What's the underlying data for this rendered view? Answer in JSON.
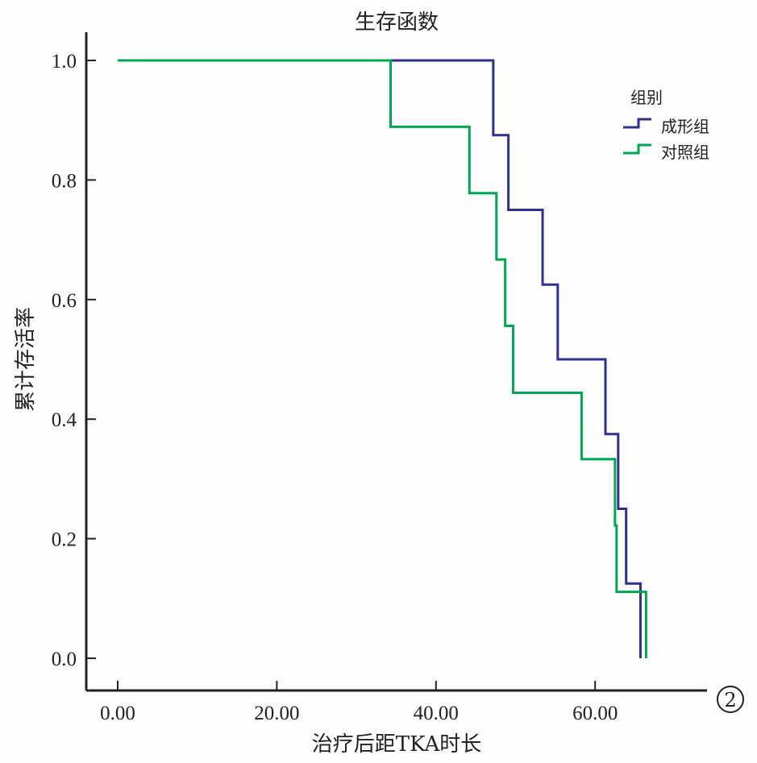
{
  "chart_data": {
    "type": "line",
    "subtype": "kaplan-meier-step",
    "title": "生存函数",
    "xlabel": "治疗后距TKA时长",
    "ylabel": "累计存活率",
    "xlim": [
      -4,
      74
    ],
    "ylim": [
      0,
      1.05
    ],
    "xticks": [
      0,
      20,
      40,
      60
    ],
    "xtick_labels": [
      "0.00",
      "20.00",
      "40.00",
      "60.00"
    ],
    "yticks": [
      0,
      0.2,
      0.4,
      0.6,
      0.8,
      1.0
    ],
    "ytick_labels": [
      "0.0",
      "0.2",
      "0.4",
      "0.6",
      "0.8",
      "1.0"
    ],
    "grid": false,
    "legend": {
      "title": "组别",
      "placement": "top-right"
    },
    "panel_label": "②",
    "series": [
      {
        "name": "成形组",
        "color": "#2e3192",
        "start": [
          0,
          1.0
        ],
        "steps": [
          [
            47.2,
            0.875
          ],
          [
            49.1,
            0.75
          ],
          [
            53.4,
            0.625
          ],
          [
            55.3,
            0.5
          ],
          [
            61.3,
            0.375
          ],
          [
            62.9,
            0.25
          ],
          [
            63.9,
            0.125
          ],
          [
            65.7,
            0.0
          ]
        ]
      },
      {
        "name": "对照组",
        "color": "#00a650",
        "start": [
          0,
          1.0
        ],
        "steps": [
          [
            34.3,
            0.889
          ],
          [
            44.2,
            0.778
          ],
          [
            47.6,
            0.667
          ],
          [
            48.7,
            0.556
          ],
          [
            49.7,
            0.444
          ],
          [
            58.3,
            0.333
          ],
          [
            62.5,
            0.222
          ],
          [
            62.7,
            0.111
          ],
          [
            66.4,
            0.0
          ]
        ]
      }
    ]
  }
}
